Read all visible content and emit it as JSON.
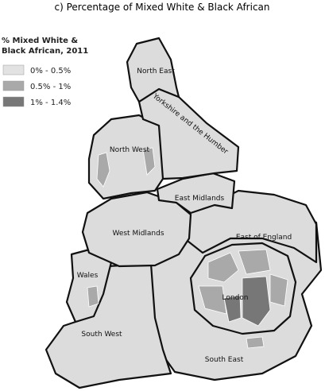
{
  "title": "c) Percentage of Mixed White & Black African",
  "legend": {
    "title": [
      "% Mixed White &",
      "Black African, 2011"
    ],
    "items": [
      {
        "label": "0% - 0.5%",
        "color": "#e2e2e2"
      },
      {
        "label": "0.5% - 1%",
        "color": "#a9a9a9"
      },
      {
        "label": "1% - 1.4%",
        "color": "#777777"
      }
    ]
  },
  "regions": [
    "North East",
    "Yorkshire and the Humber",
    "North West",
    "East Midlands",
    "West Midlands",
    "East of England",
    "Wales",
    "London",
    "South West",
    "South East"
  ]
}
